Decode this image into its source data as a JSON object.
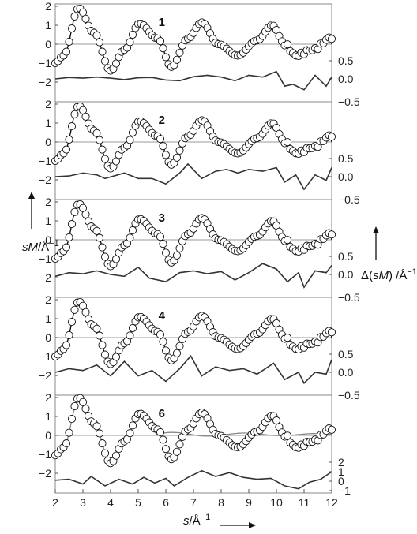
{
  "chart_data": {
    "type": "line",
    "x_axis": {
      "label_var": "s",
      "label_unit": "/Å",
      "label_exp": "−1",
      "range": [
        2,
        12
      ],
      "ticks": [
        "2",
        "3",
        "4",
        "5",
        "6",
        "7",
        "8",
        "9",
        "10",
        "11",
        "12"
      ]
    },
    "left_axis": {
      "label_var": "sM",
      "label_unit": "/Å",
      "label_exp": "−1",
      "ticks": [
        "2",
        "1",
        "0",
        "−1",
        "−2"
      ]
    },
    "right_axis": {
      "label_prefix": "Δ(",
      "label_var": "sM",
      "label_suffix": ") /Å",
      "label_exp": "−1",
      "ticks_default": [
        "0.5",
        "0.0",
        "−0.5"
      ],
      "ticks_last": [
        "2",
        "1",
        "0",
        "−1"
      ]
    },
    "colors": {
      "experimental": "#000000",
      "model": "#888888",
      "difference": "#333333"
    },
    "series_info": [
      "experimental sM (open circles)",
      "model sM (solid line)",
      "difference curve (lower trace, right axis)"
    ],
    "peaks": [
      {
        "s": 2.85,
        "sM": 1.9
      },
      {
        "s": 5.05,
        "sM": 1.1
      },
      {
        "s": 7.3,
        "sM": 1.15
      },
      {
        "s": 9.85,
        "sM": 1.0
      }
    ],
    "panels": [
      {
        "label": "1",
        "diff": [
          [
            2,
            0.0
          ],
          [
            2.5,
            0.04
          ],
          [
            3,
            0.02
          ],
          [
            3.5,
            0.05
          ],
          [
            4,
            0.02
          ],
          [
            4.5,
            -0.02
          ],
          [
            5,
            0.03
          ],
          [
            5.5,
            0.04
          ],
          [
            6,
            -0.03
          ],
          [
            6.5,
            -0.05
          ],
          [
            7,
            0.06
          ],
          [
            7.5,
            0.1
          ],
          [
            8,
            0.05
          ],
          [
            8.5,
            -0.05
          ],
          [
            9,
            0.1
          ],
          [
            9.5,
            0.05
          ],
          [
            10,
            0.2
          ],
          [
            10.3,
            -0.2
          ],
          [
            10.6,
            -0.15
          ],
          [
            11,
            -0.3
          ],
          [
            11.4,
            0.1
          ],
          [
            11.8,
            -0.2
          ],
          [
            12,
            0.05
          ]
        ],
        "model_visible": false
      },
      {
        "label": "2",
        "diff": [
          [
            2,
            0.0
          ],
          [
            2.5,
            0.02
          ],
          [
            3,
            0.1
          ],
          [
            3.5,
            0.05
          ],
          [
            3.8,
            -0.05
          ],
          [
            4.5,
            0.1
          ],
          [
            5,
            -0.05
          ],
          [
            5.5,
            -0.05
          ],
          [
            6,
            -0.2
          ],
          [
            6.5,
            0.1
          ],
          [
            6.8,
            0.35
          ],
          [
            7.3,
            -0.05
          ],
          [
            7.8,
            0.15
          ],
          [
            8.2,
            0.2
          ],
          [
            8.6,
            0.1
          ],
          [
            9,
            0.2
          ],
          [
            9.5,
            0.15
          ],
          [
            10,
            0.25
          ],
          [
            10.3,
            -0.15
          ],
          [
            10.7,
            0.05
          ],
          [
            11,
            -0.35
          ],
          [
            11.4,
            0.05
          ],
          [
            11.8,
            -0.1
          ],
          [
            12,
            0.25
          ]
        ],
        "model_visible": false
      },
      {
        "label": "3",
        "diff": [
          [
            2,
            -0.05
          ],
          [
            2.5,
            0.05
          ],
          [
            3,
            0.02
          ],
          [
            3.5,
            0.1
          ],
          [
            4,
            0.0
          ],
          [
            4.5,
            -0.05
          ],
          [
            5,
            0.2
          ],
          [
            5.4,
            -0.1
          ],
          [
            6,
            -0.2
          ],
          [
            6.5,
            0.05
          ],
          [
            7,
            0.1
          ],
          [
            7.5,
            0.02
          ],
          [
            8,
            0.08
          ],
          [
            8.5,
            -0.15
          ],
          [
            9,
            0.05
          ],
          [
            9.5,
            0.3
          ],
          [
            10,
            0.15
          ],
          [
            10.4,
            -0.2
          ],
          [
            10.8,
            0.05
          ],
          [
            11,
            -0.35
          ],
          [
            11.4,
            0.1
          ],
          [
            11.8,
            0.05
          ],
          [
            12,
            0.25
          ]
        ],
        "model_visible": false
      },
      {
        "label": "4",
        "diff": [
          [
            2,
            0.0
          ],
          [
            2.5,
            0.1
          ],
          [
            3,
            0.05
          ],
          [
            3.5,
            0.2
          ],
          [
            4,
            -0.1
          ],
          [
            4.5,
            0.3
          ],
          [
            5,
            -0.1
          ],
          [
            5.5,
            0.05
          ],
          [
            6,
            -0.25
          ],
          [
            6.5,
            0.1
          ],
          [
            6.9,
            0.45
          ],
          [
            7.3,
            -0.1
          ],
          [
            7.8,
            0.15
          ],
          [
            8.3,
            0.05
          ],
          [
            8.8,
            0.1
          ],
          [
            9.3,
            -0.05
          ],
          [
            9.9,
            0.25
          ],
          [
            10.3,
            -0.2
          ],
          [
            10.8,
            0.0
          ],
          [
            11,
            -0.3
          ],
          [
            11.4,
            0.0
          ],
          [
            11.8,
            -0.05
          ],
          [
            12,
            0.35
          ]
        ],
        "model_visible": false
      },
      {
        "label": "6",
        "diff": [
          [
            2,
            0.1
          ],
          [
            2.5,
            0.2
          ],
          [
            3,
            -0.3
          ],
          [
            3.3,
            0.5
          ],
          [
            3.8,
            -0.5
          ],
          [
            4.3,
            0.2
          ],
          [
            4.8,
            -0.3
          ],
          [
            5.2,
            0.4
          ],
          [
            5.6,
            -0.2
          ],
          [
            6,
            0.3
          ],
          [
            6.3,
            -0.5
          ],
          [
            6.8,
            0.4
          ],
          [
            7.3,
            1.1
          ],
          [
            7.8,
            0.5
          ],
          [
            8.3,
            0.9
          ],
          [
            8.8,
            0.4
          ],
          [
            9.3,
            0.2
          ],
          [
            9.8,
            0.3
          ],
          [
            10.3,
            -0.5
          ],
          [
            10.8,
            -0.8
          ],
          [
            11.2,
            -0.1
          ],
          [
            11.6,
            0.2
          ],
          [
            12,
            1.0
          ]
        ],
        "model_visible": true,
        "model_divergence": {
          "start": 5.6,
          "amp": [
            0.15,
            0.15,
            0.1
          ]
        }
      }
    ]
  }
}
